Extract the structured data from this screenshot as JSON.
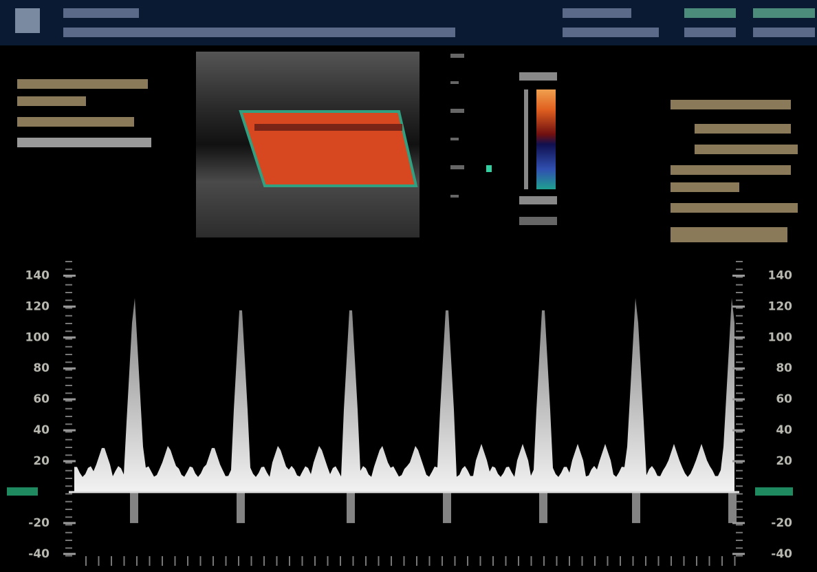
{
  "spectral_scale": {
    "ylim": [
      -45,
      150
    ],
    "left_ticks": [
      140,
      120,
      100,
      80,
      60,
      40,
      20,
      -20,
      -40
    ],
    "right_ticks": [
      140,
      120,
      100,
      80,
      60,
      40,
      20,
      -20,
      -40
    ]
  }
}
